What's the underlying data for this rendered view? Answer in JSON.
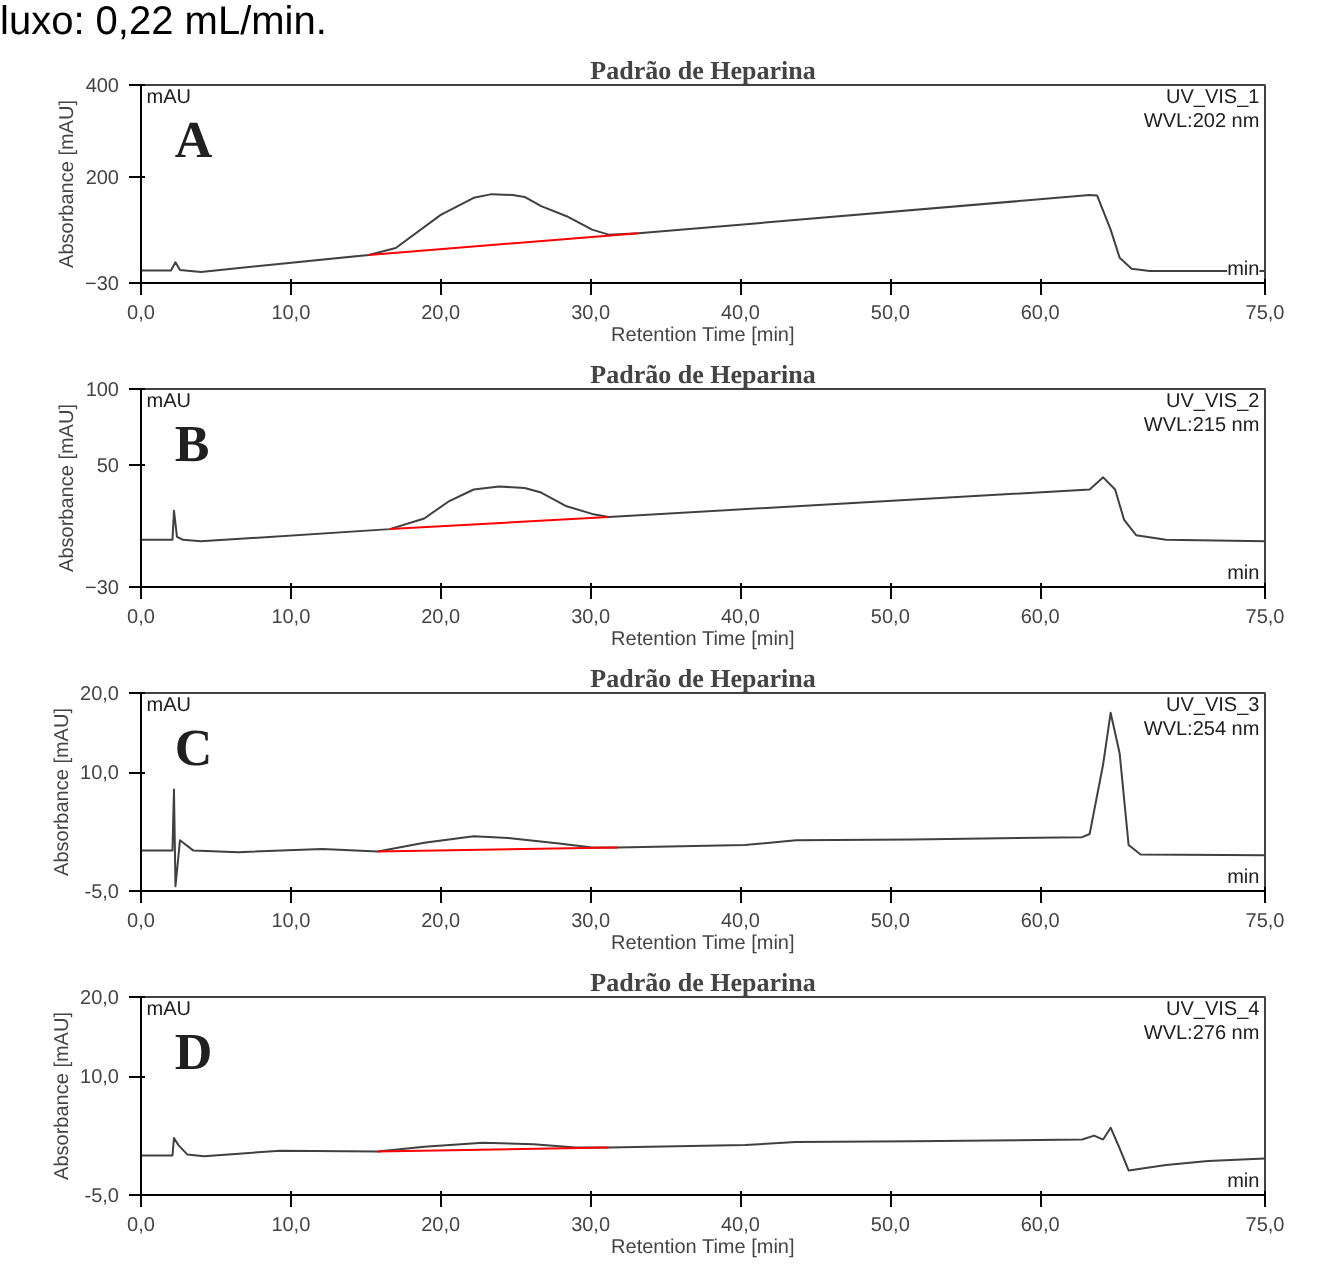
{
  "chart_data": [
    {
      "type": "line",
      "title": "Padrão de Heparina",
      "xlabel": "Retention Time [min]",
      "ylabel": "Absorbance [mAU]",
      "annotations": [
        "A",
        "mAU",
        "min",
        "UV_VIS_1",
        "WVL:202 nm",
        "luxo: 0,22 mL/min."
      ],
      "xlim": [
        0,
        75
      ],
      "ylim": [
        -30,
        400
      ],
      "xticks": [
        {
          "value": 0,
          "label": "0,0"
        },
        {
          "value": 10,
          "label": "10,0"
        },
        {
          "value": 20,
          "label": "20,0"
        },
        {
          "value": 30,
          "label": "30,0"
        },
        {
          "value": 40,
          "label": "40,0"
        },
        {
          "value": 50,
          "label": "50,0"
        },
        {
          "value": 60,
          "label": "60,0"
        },
        {
          "value": 75,
          "label": "75,0"
        }
      ],
      "yticks": [
        -30,
        200,
        400
      ],
      "grid": false,
      "series": [
        {
          "color": "#404040",
          "x": [
            0,
            2,
            2.3,
            2.6,
            4,
            15.2,
            17,
            20,
            22.2,
            23.4,
            24.8,
            25.6,
            26.7,
            28.4,
            30.1,
            31.2,
            33.2,
            63.3,
            63.8,
            64.7,
            65.3,
            66.1,
            67.3,
            75
          ],
          "values": [
            -3,
            -3,
            15,
            -2,
            -6,
            31,
            46,
            118,
            155,
            163,
            161,
            157,
            137,
            115,
            86,
            75,
            78,
            161,
            160,
            86,
            25,
            1,
            -4,
            -4
          ]
        },
        {
          "color": "#ff0000",
          "x": [
            15.2,
            33.2
          ],
          "values": [
            31,
            78
          ]
        }
      ]
    },
    {
      "type": "line",
      "title": "Padrão de Heparina",
      "xlabel": "Retention Time [min]",
      "ylabel": "Absorbance [mAU]",
      "annotations": [
        "B",
        "mAU",
        "min",
        "UV_VIS_2",
        "WVL:215 nm"
      ],
      "xlim": [
        0,
        75
      ],
      "ylim": [
        -30,
        100
      ],
      "xticks": [
        {
          "value": 0,
          "label": "0,0"
        },
        {
          "value": 10,
          "label": "10,0"
        },
        {
          "value": 20,
          "label": "20,0"
        },
        {
          "value": 30,
          "label": "30,0"
        },
        {
          "value": 40,
          "label": "40,0"
        },
        {
          "value": 50,
          "label": "50,0"
        },
        {
          "value": 60,
          "label": "60,0"
        },
        {
          "value": 75,
          "label": "75,0"
        }
      ],
      "yticks": [
        -30,
        50,
        100
      ],
      "grid": false,
      "series": [
        {
          "color": "#404040",
          "x": [
            0,
            2.1,
            2.2,
            2.4,
            2.8,
            4,
            16.6,
            18.9,
            20.5,
            22.2,
            23.9,
            25.6,
            26.7,
            28.4,
            30.1,
            31.2,
            63.3,
            64.2,
            65,
            65.6,
            66.4,
            68.4,
            75
          ],
          "values": [
            1,
            1,
            20,
            3,
            1,
            0,
            8,
            15,
            26,
            34,
            36,
            35,
            32,
            23,
            18,
            16,
            34,
            42,
            34,
            14,
            4,
            1,
            0
          ]
        },
        {
          "color": "#ff0000",
          "x": [
            16.6,
            31.2
          ],
          "values": [
            8,
            16
          ]
        }
      ]
    },
    {
      "type": "line",
      "title": "Padrão de Heparina",
      "xlabel": "Retention Time [min]",
      "ylabel": "Absorbance [mAU]",
      "annotations": [
        "C",
        "mAU",
        "min",
        "UV_VIS_3",
        "WVL:254 nm"
      ],
      "xlim": [
        0,
        75
      ],
      "ylim": [
        -5,
        20
      ],
      "xticks": [
        {
          "value": 0,
          "label": "0,0"
        },
        {
          "value": 10,
          "label": "10,0"
        },
        {
          "value": 20,
          "label": "20,0"
        },
        {
          "value": 30,
          "label": "30,0"
        },
        {
          "value": 40,
          "label": "40,0"
        },
        {
          "value": 50,
          "label": "50,0"
        },
        {
          "value": 60,
          "label": "60,0"
        },
        {
          "value": 75,
          "label": "75,0"
        }
      ],
      "yticks": [
        {
          "value": -5,
          "label": "-5,0"
        },
        {
          "value": 10,
          "label": "10,0"
        },
        {
          "value": 20,
          "label": "20,0"
        }
      ],
      "grid": false,
      "series": [
        {
          "color": "#404040",
          "x": [
            0,
            2.1,
            2.2,
            2.3,
            2.6,
            3.5,
            6.5,
            12.1,
            15.8,
            18.9,
            22.2,
            24.5,
            27.9,
            30.1,
            31.8,
            40.3,
            43.7,
            51.5,
            62.8,
            63.3,
            64.2,
            64.7,
            65.3,
            65.9,
            66.7,
            75
          ],
          "values": [
            0.1,
            0.1,
            7.8,
            -4.4,
            1.4,
            0.1,
            -0.1,
            0.3,
            0,
            1.1,
            1.9,
            1.7,
            1.0,
            0.5,
            0.5,
            0.8,
            1.4,
            1.5,
            1.8,
            2.2,
            11,
            17.5,
            12.4,
            0.8,
            -0.4,
            -0.5
          ]
        },
        {
          "color": "#ff0000",
          "x": [
            15.8,
            31.8
          ],
          "values": [
            0,
            0.5
          ]
        }
      ]
    },
    {
      "type": "line",
      "title": "Padrão de Heparina",
      "xlabel": "Retention Time [min]",
      "ylabel": "Absorbance [mAU]",
      "annotations": [
        "D",
        "mAU",
        "min",
        "UV_VIS_4",
        "WVL:276 nm"
      ],
      "xlim": [
        0,
        75
      ],
      "ylim": [
        -5,
        20
      ],
      "xticks": [
        {
          "value": 0,
          "label": "0,0"
        },
        {
          "value": 10,
          "label": "10,0"
        },
        {
          "value": 20,
          "label": "20,0"
        },
        {
          "value": 30,
          "label": "30,0"
        },
        {
          "value": 40,
          "label": "40,0"
        },
        {
          "value": 50,
          "label": "50,0"
        },
        {
          "value": 60,
          "label": "60,0"
        },
        {
          "value": 75,
          "label": "75,0"
        }
      ],
      "yticks": [
        {
          "value": -5,
          "label": "-5,0"
        },
        {
          "value": 10,
          "label": "10,0"
        },
        {
          "value": 20,
          "label": "20,0"
        }
      ],
      "grid": false,
      "series": [
        {
          "color": "#404040",
          "x": [
            0,
            2.1,
            2.2,
            2.5,
            3.1,
            4.2,
            9.3,
            15.8,
            18.9,
            22.8,
            26.2,
            29,
            31.2,
            40.3,
            43.7,
            51.5,
            62.8,
            63.6,
            64.2,
            64.7,
            65.3,
            65.9,
            68.4,
            71.2,
            75
          ],
          "values": [
            0,
            0,
            2.2,
            1.3,
            0.1,
            -0.1,
            0.6,
            0.5,
            1.1,
            1.6,
            1.4,
            1.0,
            1.0,
            1.3,
            1.7,
            1.8,
            2.0,
            2.5,
            2.0,
            3.5,
            0.9,
            -1.9,
            -1.2,
            -0.7,
            -0.4
          ]
        },
        {
          "color": "#ff0000",
          "x": [
            15.8,
            31.2
          ],
          "values": [
            0.5,
            1.0
          ]
        }
      ]
    }
  ]
}
